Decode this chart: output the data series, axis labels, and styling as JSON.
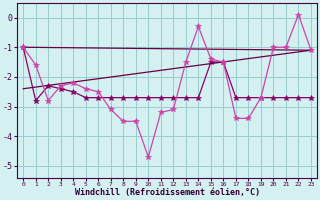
{
  "title": "",
  "xlabel": "Windchill (Refroidissement éolien,°C)",
  "bg_color": "#d4f0f0",
  "grid_color": "#99cccc",
  "line_color1": "#cc44aa",
  "line_color2": "#880066",
  "line_color3": "#660044",
  "xlim": [
    -0.5,
    23.5
  ],
  "ylim": [
    -5.4,
    0.5
  ],
  "xticks": [
    0,
    1,
    2,
    3,
    4,
    5,
    6,
    7,
    8,
    9,
    10,
    11,
    12,
    13,
    14,
    15,
    16,
    17,
    18,
    19,
    20,
    21,
    22,
    23
  ],
  "yticks": [
    -5,
    -4,
    -3,
    -2,
    -1,
    0
  ],
  "series1_x": [
    0,
    1,
    2,
    3,
    4,
    5,
    6,
    7,
    8,
    9,
    10,
    11,
    12,
    13,
    14,
    15,
    16,
    17,
    18,
    19,
    20,
    21,
    22,
    23
  ],
  "series1_y": [
    -1.0,
    -1.6,
    -2.8,
    -2.3,
    -2.2,
    -2.4,
    -2.5,
    -3.1,
    -3.5,
    -3.5,
    -4.7,
    -3.2,
    -3.1,
    -1.5,
    -0.3,
    -1.4,
    -1.5,
    -3.4,
    -3.4,
    -2.7,
    -1.0,
    -1.0,
    0.1,
    -1.1
  ],
  "series2_x": [
    0,
    1,
    2,
    3,
    4,
    5,
    6,
    7,
    8,
    9,
    10,
    11,
    12,
    13,
    14,
    15,
    16,
    17,
    18,
    19,
    20,
    21,
    22,
    23
  ],
  "series2_y": [
    -1.0,
    -2.8,
    -2.3,
    -2.4,
    -2.5,
    -2.7,
    -2.7,
    -2.7,
    -2.7,
    -2.7,
    -2.7,
    -2.7,
    -2.7,
    -2.7,
    -2.7,
    -1.5,
    -1.5,
    -2.7,
    -2.7,
    -2.7,
    -2.7,
    -2.7,
    -2.7,
    -2.7
  ],
  "trend1_x": [
    0,
    23
  ],
  "trend1_y": [
    -2.4,
    -1.1
  ],
  "trend2_x": [
    0,
    23
  ],
  "trend2_y": [
    -1.0,
    -1.1
  ]
}
